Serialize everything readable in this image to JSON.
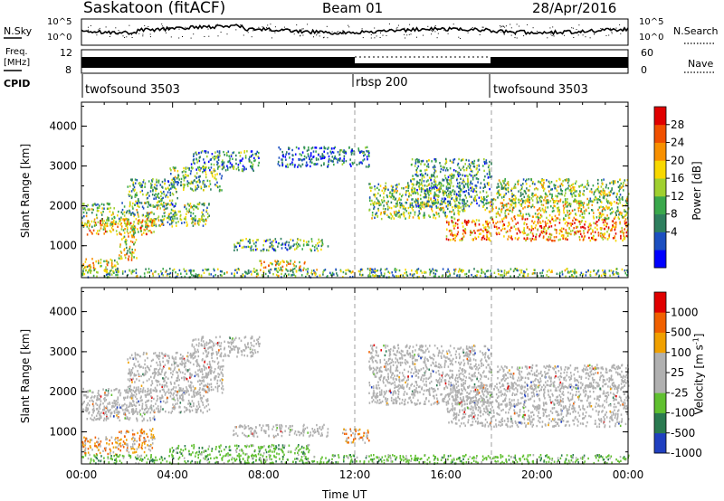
{
  "header": {
    "station": "Saskatoon (fitACF)",
    "beam": "Beam 01",
    "date": "28/Apr/2016"
  },
  "top_panels": {
    "nsky_label": "N.Sky",
    "nsky_ticks": [
      "10^5",
      "10^0"
    ],
    "nsearch_label": "N.Search",
    "nsearch_ticks": [
      "10^5",
      "10^0"
    ],
    "freq_label": "Freq.",
    "freq_unit": "[MHz]",
    "freq_ticks": [
      "12",
      "8"
    ],
    "nave_label": "Nave",
    "nave_ticks": [
      "60",
      "0"
    ],
    "cpid_label": "CPID",
    "cpid_segments": [
      {
        "name": "twofsound 3503",
        "start": 0,
        "end": 12
      },
      {
        "name": "rbsp 200",
        "start": 12,
        "end": 18
      },
      {
        "name": "twofsound 3503",
        "start": 18,
        "end": 24
      }
    ]
  },
  "chart_data": [
    {
      "type": "heatmap",
      "title": "",
      "ylabel": "Slant Range [km]",
      "yticks": [
        "4000",
        "3000",
        "2000",
        "1000"
      ],
      "ylim": [
        200,
        4600
      ],
      "xlim": [
        0,
        24
      ],
      "colorbar": {
        "label": "Power [dB]",
        "ticks": [
          "28",
          "24",
          "20",
          "16",
          "12",
          "8",
          "4"
        ],
        "colors": [
          "#0000ff",
          "#1c4fc0",
          "#2e7f5e",
          "#3aa84c",
          "#a0d030",
          "#f8d800",
          "#f89000",
          "#f05000",
          "#e00000"
        ]
      },
      "scatter_bands": [
        {
          "t0": 0.0,
          "t1": 5.6,
          "r0": 1500,
          "r1": 2100,
          "level": 0.45
        },
        {
          "t0": 0.2,
          "t1": 3.2,
          "r0": 1300,
          "r1": 1700,
          "level": 0.65
        },
        {
          "t0": 0.0,
          "t1": 1.6,
          "r0": 350,
          "r1": 700,
          "level": 0.55
        },
        {
          "t0": 1.6,
          "t1": 2.4,
          "r0": 650,
          "r1": 1500,
          "level": 0.6
        },
        {
          "t0": 2.0,
          "t1": 4.2,
          "r0": 2000,
          "r1": 2700,
          "level": 0.35
        },
        {
          "t0": 3.8,
          "t1": 6.2,
          "r0": 2400,
          "r1": 3000,
          "level": 0.4
        },
        {
          "t0": 4.8,
          "t1": 7.8,
          "r0": 2900,
          "r1": 3400,
          "level": 0.3
        },
        {
          "t0": 6.6,
          "t1": 10.8,
          "r0": 900,
          "r1": 1200,
          "level": 0.35
        },
        {
          "t0": 8.6,
          "t1": 12.6,
          "r0": 3000,
          "r1": 3500,
          "level": 0.2
        },
        {
          "t0": 7.8,
          "t1": 9.8,
          "r0": 400,
          "r1": 650,
          "level": 0.6
        },
        {
          "t0": 12.6,
          "t1": 16.8,
          "r0": 1700,
          "r1": 2600,
          "level": 0.45
        },
        {
          "t0": 14.4,
          "t1": 18.0,
          "r0": 2000,
          "r1": 3200,
          "level": 0.35
        },
        {
          "t0": 16.0,
          "t1": 24.0,
          "r0": 1150,
          "r1": 1700,
          "level": 0.75
        },
        {
          "t0": 17.6,
          "t1": 24.0,
          "r0": 1700,
          "r1": 2200,
          "level": 0.55
        },
        {
          "t0": 18.2,
          "t1": 24.0,
          "r0": 2100,
          "r1": 2700,
          "level": 0.45
        },
        {
          "t0": 0.0,
          "t1": 24.0,
          "r0": 230,
          "r1": 450,
          "level": 0.4
        }
      ]
    },
    {
      "type": "heatmap",
      "title": "",
      "ylabel": "Slant Range [km]",
      "yticks": [
        "4000",
        "3000",
        "2000",
        "1000"
      ],
      "ylim": [
        200,
        4600
      ],
      "xlim": [
        0,
        24
      ],
      "xlabel": "Time UT",
      "xticks": [
        "00:00",
        "04:00",
        "08:00",
        "12:00",
        "16:00",
        "20:00",
        "00:00"
      ],
      "colorbar": {
        "label": "Velocity [m s",
        "label_sup": "-1",
        "label_end": "]",
        "ticks": [
          "1000",
          "500",
          "100",
          "25",
          "-25",
          "-100",
          "-500",
          "-1000"
        ],
        "colors": [
          "#2040c0",
          "#2a7a50",
          "#60c030",
          "#b0b0b0",
          "#b0b0b0",
          "#f0a000",
          "#f06000",
          "#e00000"
        ]
      },
      "scatter_bands": [
        {
          "t0": 0.0,
          "t1": 5.6,
          "r0": 1500,
          "r1": 2100,
          "level": 0.5
        },
        {
          "t0": 0.2,
          "t1": 3.2,
          "r0": 1300,
          "r1": 1700,
          "level": 0.5
        },
        {
          "t0": 2.0,
          "t1": 6.2,
          "r0": 2000,
          "r1": 3000,
          "level": 0.5
        },
        {
          "t0": 4.8,
          "t1": 7.8,
          "r0": 2900,
          "r1": 3400,
          "level": 0.5
        },
        {
          "t0": 6.6,
          "t1": 10.8,
          "r0": 900,
          "r1": 1200,
          "level": 0.5
        },
        {
          "t0": 12.6,
          "t1": 18.0,
          "r0": 1700,
          "r1": 3200,
          "level": 0.5
        },
        {
          "t0": 16.0,
          "t1": 24.0,
          "r0": 1150,
          "r1": 2200,
          "level": 0.5
        },
        {
          "t0": 18.2,
          "t1": 24.0,
          "r0": 2100,
          "r1": 2700,
          "level": 0.5
        },
        {
          "t0": 1.6,
          "t1": 3.2,
          "r0": 500,
          "r1": 1100,
          "level": 0.85
        },
        {
          "t0": 0.0,
          "t1": 1.6,
          "r0": 450,
          "r1": 900,
          "level": 0.75
        },
        {
          "t0": 11.4,
          "t1": 12.6,
          "r0": 750,
          "r1": 1100,
          "level": 0.8
        },
        {
          "t0": 3.8,
          "t1": 10.0,
          "r0": 450,
          "r1": 700,
          "level": 0.2
        },
        {
          "t0": 0.0,
          "t1": 24.0,
          "r0": 230,
          "r1": 450,
          "level": 0.2
        }
      ]
    }
  ]
}
